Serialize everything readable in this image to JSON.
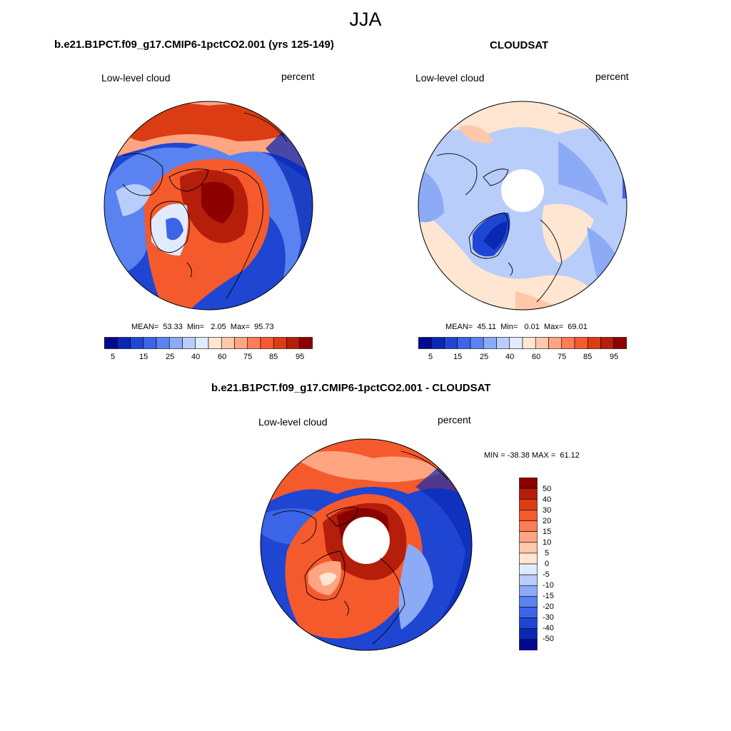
{
  "figure": {
    "season": "JJA"
  },
  "panels": [
    {
      "title": "b.e21.B1PCT.f09_g17.CMIP6-1pctCO2.001 (yrs 125-149)",
      "left_label": "Low-level cloud",
      "right_label": "percent",
      "stats_text": "MEAN=  53.33  Min=   2.05  Max=  95.73",
      "stats": {
        "mean": 53.33,
        "min": 2.05,
        "max": 95.73
      },
      "polar_hole": false
    },
    {
      "title": "CLOUDSAT",
      "left_label": "Low-level cloud",
      "right_label": "percent",
      "stats_text": "MEAN=  45.11  Min=   0.01  Max=  69.01",
      "stats": {
        "mean": 45.11,
        "min": 0.01,
        "max": 69.01
      },
      "polar_hole": true
    },
    {
      "title": "b.e21.B1PCT.f09_g17.CMIP6-1pctCO2.001 - CLOUDSAT",
      "left_label": "Low-level cloud",
      "right_label": "percent",
      "stats_text": "MIN = -38.38 MAX =  61.12",
      "stats": {
        "min": -38.38,
        "max": 61.12
      },
      "polar_hole": true
    }
  ],
  "colorbar_abs": {
    "colors": [
      "#000a8c",
      "#0a28b4",
      "#1e46d2",
      "#3c64e6",
      "#5a82f0",
      "#8caaf5",
      "#b9cdfa",
      "#e1ebff",
      "#ffe6d2",
      "#ffc8aa",
      "#ffa582",
      "#ff7d55",
      "#f55a2d",
      "#dc3c14",
      "#b41e0a",
      "#8c0000"
    ],
    "labels": [
      "5",
      "15",
      "25",
      "40",
      "60",
      "75",
      "85",
      "95"
    ]
  },
  "colorbar_diff": {
    "colors": [
      "#8c0000",
      "#b41e0a",
      "#dc3c14",
      "#f55a2d",
      "#ff7d55",
      "#ffa582",
      "#ffc8aa",
      "#ffe6d2",
      "#e1ebff",
      "#b9cdfa",
      "#8caaf5",
      "#5a82f0",
      "#3c64e6",
      "#1e46d2",
      "#0a28b4",
      "#000a8c"
    ],
    "labels": [
      "50",
      "40",
      "30",
      "20",
      "15",
      "10",
      "5",
      "0",
      "-5",
      "-10",
      "-15",
      "-20",
      "-30",
      "-40",
      "-50"
    ]
  }
}
